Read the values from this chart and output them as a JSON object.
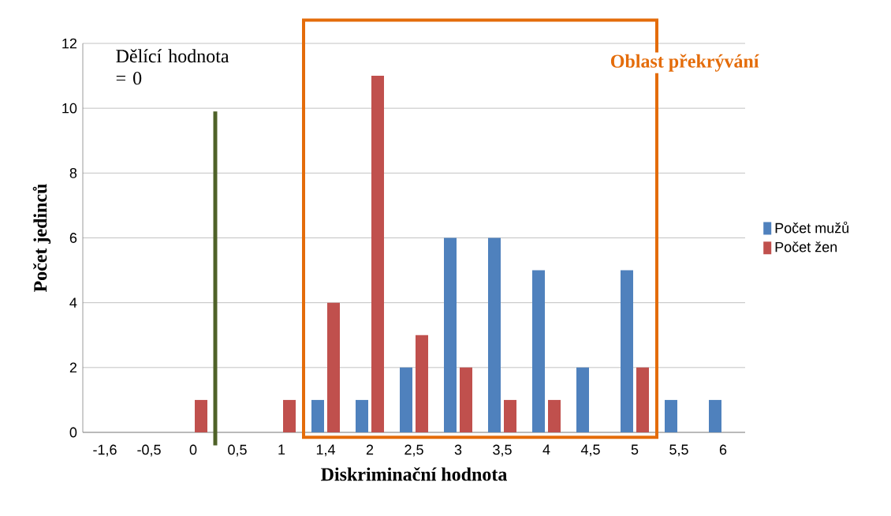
{
  "chart_data": {
    "type": "bar",
    "xlabel": "Diskriminační hodnota",
    "ylabel": "Počet jedinců",
    "categories": [
      "-1,6",
      "-0,5",
      "0",
      "0,5",
      "1",
      "1,4",
      "2",
      "2,5",
      "3",
      "3,5",
      "4",
      "4,5",
      "5",
      "5,5",
      "6"
    ],
    "series": [
      {
        "name": "Počet mužů",
        "color": "#4f81bd",
        "values": [
          0,
          0,
          0,
          0,
          0,
          1,
          1,
          2,
          6,
          6,
          5,
          2,
          5,
          1,
          1
        ]
      },
      {
        "name": "Počet žen",
        "color": "#c0504d",
        "values": [
          0,
          0,
          1,
          0,
          1,
          4,
          11,
          3,
          2,
          1,
          1,
          0,
          2,
          0,
          0
        ]
      }
    ],
    "ylim": [
      0,
      12
    ],
    "yticks": [
      0,
      2,
      4,
      6,
      8,
      10,
      12
    ],
    "grid": "y",
    "legend": "right",
    "ref_lines": [
      {
        "axis": "x",
        "value": "0",
        "label": "Dělící hodnota = 0",
        "color": "#4f6228"
      }
    ],
    "annotations": [
      "Oblast překrývání"
    ]
  }
}
